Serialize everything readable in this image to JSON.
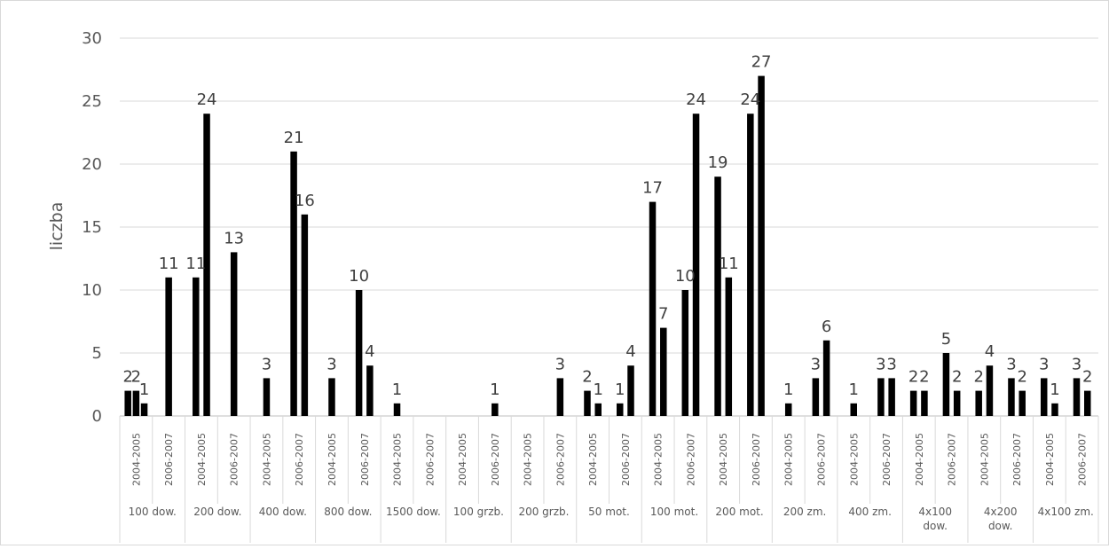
{
  "chart_data": {
    "type": "bar",
    "title": "",
    "ylabel": "liczba",
    "xlabel": "",
    "ylim": [
      0,
      30
    ],
    "yticks": [
      0,
      5,
      10,
      15,
      20,
      25,
      30
    ],
    "grid": true,
    "legend": "none",
    "bar_color": "#000000",
    "groups": [
      {
        "label": "100 dow.",
        "bars": [
          {
            "period": "2004-2005",
            "values": [
              2,
              2,
              1
            ]
          },
          {
            "period": "2006-2007",
            "values": [
              11
            ]
          }
        ]
      },
      {
        "label": "200 dow.",
        "bars": [
          {
            "period": "2004-2005",
            "values": [
              11,
              24
            ]
          },
          {
            "period": "2006-2007",
            "values": [
              13
            ]
          }
        ]
      },
      {
        "label": "400 dow.",
        "bars": [
          {
            "period": "2004-2005",
            "values": [
              3
            ]
          },
          {
            "period": "2006-2007",
            "values": [
              21,
              16
            ]
          }
        ]
      },
      {
        "label": "800 dow.",
        "bars": [
          {
            "period": "2004-2005",
            "values": [
              3
            ]
          },
          {
            "period": "2006-2007",
            "values": [
              10,
              4
            ]
          }
        ]
      },
      {
        "label": "1500 dow.",
        "bars": [
          {
            "period": "2004-2005",
            "values": [
              1
            ]
          },
          {
            "period": "2006-2007",
            "values": []
          }
        ]
      },
      {
        "label": "100 grzb.",
        "bars": [
          {
            "period": "2004-2005",
            "values": []
          },
          {
            "period": "2006-2007",
            "values": [
              1
            ]
          }
        ]
      },
      {
        "label": "200 grzb.",
        "bars": [
          {
            "period": "2004-2005",
            "values": []
          },
          {
            "period": "2006-2007",
            "values": [
              3
            ]
          }
        ]
      },
      {
        "label": "50 mot.",
        "bars": [
          {
            "period": "2004-2005",
            "values": [
              2,
              1
            ]
          },
          {
            "period": "2006-2007",
            "values": [
              1,
              4
            ]
          }
        ]
      },
      {
        "label": "100 mot.",
        "bars": [
          {
            "period": "2004-2005",
            "values": [
              17,
              7
            ]
          },
          {
            "period": "2006-2007",
            "values": [
              10,
              24
            ]
          }
        ]
      },
      {
        "label": "200 mot.",
        "bars": [
          {
            "period": "2004-2005",
            "values": [
              19,
              11
            ]
          },
          {
            "period": "2006-2007",
            "values": [
              24,
              27
            ]
          }
        ]
      },
      {
        "label": "200 zm.",
        "bars": [
          {
            "period": "2004-2005",
            "values": [
              1
            ]
          },
          {
            "period": "2006-2007",
            "values": [
              3,
              6
            ]
          }
        ]
      },
      {
        "label": "400 zm.",
        "bars": [
          {
            "period": "2004-2005",
            "values": [
              1
            ]
          },
          {
            "period": "2006-2007",
            "values": [
              3,
              3
            ]
          }
        ]
      },
      {
        "label": "4x100 dow.",
        "bars": [
          {
            "period": "2004-2005",
            "values": [
              2,
              2
            ]
          },
          {
            "period": "2006-2007",
            "values": [
              5,
              2
            ]
          }
        ]
      },
      {
        "label": "4x200 dow.",
        "bars": [
          {
            "period": "2004-2005",
            "values": [
              2,
              4
            ]
          },
          {
            "period": "2006-2007",
            "values": [
              3,
              2
            ]
          }
        ]
      },
      {
        "label": "4x100 zm.",
        "bars": [
          {
            "period": "2004-2005",
            "values": [
              3,
              1
            ]
          },
          {
            "period": "2006-2007",
            "values": [
              3,
              2
            ]
          }
        ]
      }
    ]
  }
}
